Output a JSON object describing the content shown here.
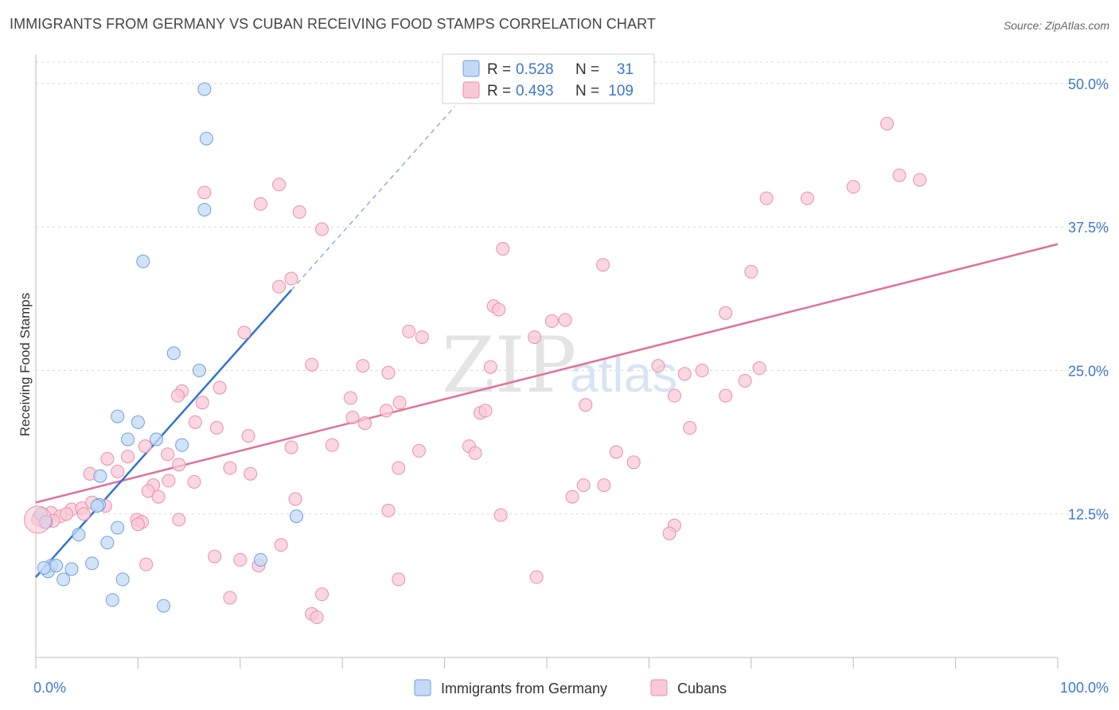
{
  "chart_title": "IMMIGRANTS FROM GERMANY VS CUBAN RECEIVING FOOD STAMPS CORRELATION CHART",
  "source": "Source: ZipAtlas.com",
  "watermark": {
    "zip": "ZIP",
    "atlas": "atlas"
  },
  "colors": {
    "blue_fill": "#c3d9f6",
    "blue_stroke": "#6f9fdc",
    "blue_line": "#2f73d6",
    "pink_fill": "#f9c9d7",
    "pink_stroke": "#ea8fab",
    "pink_line": "#e0719a",
    "tick_label": "#3c78cc",
    "grid": "#d8d8d8"
  },
  "legend": {
    "rows": [
      {
        "r_label": "R = ",
        "r_value": "0.528",
        "n_label": "N = ",
        "n_value": "31",
        "series": "germany"
      },
      {
        "r_label": "R = ",
        "r_value": "0.493",
        "n_label": "N = ",
        "n_value": "109",
        "series": "cubans"
      }
    ]
  },
  "chart_data": {
    "type": "scatter",
    "title": "IMMIGRANTS FROM GERMANY VS CUBAN RECEIVING FOOD STAMPS CORRELATION CHART",
    "xlabel": "",
    "ylabel": "Receiving Food Stamps",
    "xlim": [
      0,
      100
    ],
    "ylim": [
      0,
      52
    ],
    "x_tick_labels": [
      "0.0%",
      "100.0%"
    ],
    "y_ticks": [
      12.5,
      25.0,
      37.5,
      50.0
    ],
    "y_tick_labels": [
      "12.5%",
      "25.0%",
      "37.5%",
      "50.0%"
    ],
    "grid": true,
    "series": [
      {
        "name": "Immigrants from Germany",
        "R": 0.528,
        "N": 31,
        "trend": {
          "x0": 0,
          "y0": 7.0,
          "x1": 25,
          "y1": 32.0,
          "dash_to_x": 41,
          "dash_to_y": 48.0
        },
        "points": [
          [
            16.5,
            49.5
          ],
          [
            16.7,
            45.2
          ],
          [
            16.5,
            39.0
          ],
          [
            10.5,
            34.5
          ],
          [
            13.5,
            26.5
          ],
          [
            16.0,
            25.0
          ],
          [
            8.0,
            21.0
          ],
          [
            10.0,
            20.5
          ],
          [
            9.0,
            19.0
          ],
          [
            11.8,
            19.0
          ],
          [
            14.3,
            18.5
          ],
          [
            6.3,
            15.8
          ],
          [
            6.2,
            13.3
          ],
          [
            6.0,
            13.2
          ],
          [
            0.5,
            12.5
          ],
          [
            1.0,
            11.8
          ],
          [
            8.0,
            11.3
          ],
          [
            4.2,
            10.7
          ],
          [
            7.0,
            10.0
          ],
          [
            1.5,
            8.0
          ],
          [
            1.2,
            7.5
          ],
          [
            2.0,
            8.0
          ],
          [
            3.5,
            7.7
          ],
          [
            0.8,
            7.8
          ],
          [
            5.5,
            8.2
          ],
          [
            2.7,
            6.8
          ],
          [
            8.5,
            6.8
          ],
          [
            7.5,
            5.0
          ],
          [
            12.5,
            4.5
          ],
          [
            25.5,
            12.3
          ],
          [
            22.0,
            8.5
          ]
        ]
      },
      {
        "name": "Cubans",
        "R": 0.493,
        "N": 109,
        "trend": {
          "x0": 0,
          "y0": 13.5,
          "x1": 100,
          "y1": 36.0
        },
        "points": [
          [
            83.3,
            46.5
          ],
          [
            80.0,
            41.0
          ],
          [
            84.5,
            42.0
          ],
          [
            86.5,
            41.6
          ],
          [
            71.5,
            40.0
          ],
          [
            75.5,
            40.0
          ],
          [
            23.8,
            41.2
          ],
          [
            16.5,
            40.5
          ],
          [
            22.0,
            39.5
          ],
          [
            25.8,
            38.8
          ],
          [
            28.0,
            37.3
          ],
          [
            45.7,
            35.6
          ],
          [
            55.5,
            34.2
          ],
          [
            70.0,
            33.6
          ],
          [
            25.0,
            33.0
          ],
          [
            23.8,
            32.3
          ],
          [
            44.8,
            30.6
          ],
          [
            45.3,
            30.3
          ],
          [
            67.5,
            30.0
          ],
          [
            50.5,
            29.3
          ],
          [
            51.8,
            29.4
          ],
          [
            20.4,
            28.3
          ],
          [
            36.5,
            28.4
          ],
          [
            37.8,
            27.9
          ],
          [
            48.8,
            27.9
          ],
          [
            27.0,
            25.5
          ],
          [
            32.0,
            25.4
          ],
          [
            34.5,
            24.8
          ],
          [
            44.5,
            25.3
          ],
          [
            60.9,
            25.4
          ],
          [
            63.5,
            24.7
          ],
          [
            65.2,
            25.0
          ],
          [
            69.4,
            24.1
          ],
          [
            70.8,
            25.2
          ],
          [
            14.3,
            23.2
          ],
          [
            18.0,
            23.5
          ],
          [
            13.9,
            22.8
          ],
          [
            16.3,
            22.2
          ],
          [
            30.8,
            22.6
          ],
          [
            35.6,
            22.2
          ],
          [
            53.8,
            22.0
          ],
          [
            62.5,
            22.8
          ],
          [
            67.5,
            22.8
          ],
          [
            34.3,
            21.5
          ],
          [
            43.5,
            21.3
          ],
          [
            44.0,
            21.5
          ],
          [
            31.0,
            20.9
          ],
          [
            32.2,
            20.4
          ],
          [
            17.7,
            20.0
          ],
          [
            64.0,
            20.0
          ],
          [
            15.6,
            20.5
          ],
          [
            20.8,
            19.3
          ],
          [
            10.7,
            18.4
          ],
          [
            25.0,
            18.3
          ],
          [
            29.0,
            18.5
          ],
          [
            37.5,
            18.0
          ],
          [
            42.4,
            18.4
          ],
          [
            43.0,
            17.8
          ],
          [
            56.8,
            17.9
          ],
          [
            58.5,
            17.0
          ],
          [
            7.0,
            17.3
          ],
          [
            9.0,
            17.5
          ],
          [
            12.9,
            17.7
          ],
          [
            14.0,
            16.8
          ],
          [
            19.0,
            16.5
          ],
          [
            21.0,
            16.0
          ],
          [
            5.3,
            16.0
          ],
          [
            8.0,
            16.2
          ],
          [
            11.5,
            15.0
          ],
          [
            13.0,
            15.4
          ],
          [
            15.5,
            15.3
          ],
          [
            35.5,
            16.5
          ],
          [
            53.6,
            15.0
          ],
          [
            55.6,
            15.0
          ],
          [
            11.0,
            14.5
          ],
          [
            12.0,
            14.0
          ],
          [
            25.4,
            13.8
          ],
          [
            52.5,
            14.0
          ],
          [
            3.5,
            12.9
          ],
          [
            4.5,
            13.0
          ],
          [
            5.5,
            13.5
          ],
          [
            6.8,
            13.2
          ],
          [
            1.5,
            12.6
          ],
          [
            2.4,
            12.3
          ],
          [
            3.0,
            12.5
          ],
          [
            4.7,
            12.5
          ],
          [
            0.8,
            11.8
          ],
          [
            1.7,
            11.9
          ],
          [
            0.3,
            12.2
          ],
          [
            9.9,
            12.0
          ],
          [
            10.4,
            11.8
          ],
          [
            10.0,
            11.6
          ],
          [
            14.0,
            12.0
          ],
          [
            34.5,
            12.8
          ],
          [
            45.5,
            12.4
          ],
          [
            62.5,
            11.5
          ],
          [
            62.0,
            10.8
          ],
          [
            24.0,
            9.8
          ],
          [
            17.5,
            8.8
          ],
          [
            20.0,
            8.5
          ],
          [
            21.8,
            8.0
          ],
          [
            10.8,
            8.1
          ],
          [
            35.5,
            6.8
          ],
          [
            49.0,
            7.0
          ],
          [
            19.0,
            5.2
          ],
          [
            28.0,
            5.5
          ],
          [
            27.0,
            3.8
          ],
          [
            27.5,
            3.5
          ],
          [
            0.2,
            12.0
          ]
        ]
      }
    ],
    "legend_position": "bottom-center"
  }
}
